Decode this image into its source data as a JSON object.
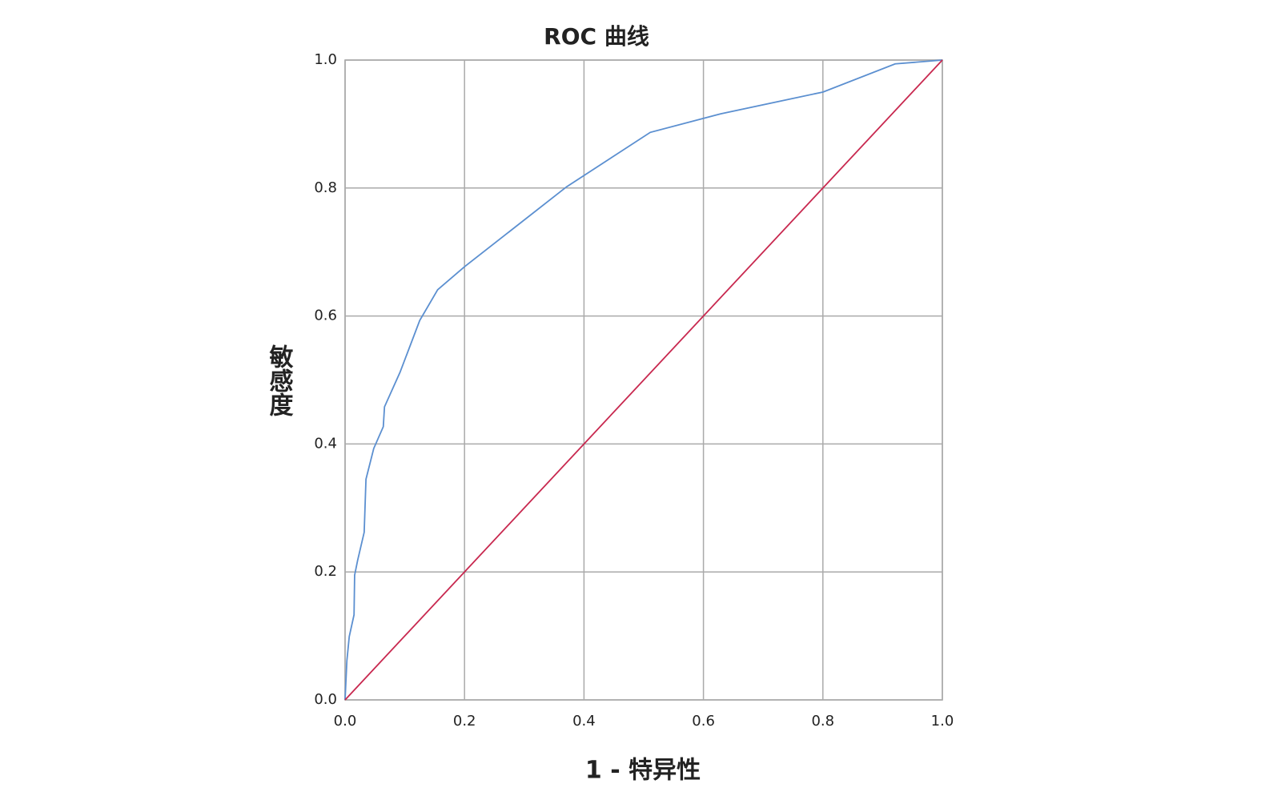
{
  "chart_data": {
    "type": "line",
    "title": "ROC 曲线",
    "x_label": "1 - 特异性",
    "y_label": "敏感度",
    "xlim": [
      0,
      1
    ],
    "ylim": [
      0,
      1
    ],
    "xticks": [
      {
        "value": 0,
        "label": "0.0"
      },
      {
        "value": 0.2,
        "label": "0.2"
      },
      {
        "value": 0.4,
        "label": "0.4"
      },
      {
        "value": 0.6,
        "label": "0.6"
      },
      {
        "value": 0.8,
        "label": "0.8"
      },
      {
        "value": 1,
        "label": "1.0"
      }
    ],
    "yticks": [
      {
        "value": 0,
        "label": "0.0"
      },
      {
        "value": 0.2,
        "label": "0.2"
      },
      {
        "value": 0.4,
        "label": "0.4"
      },
      {
        "value": 0.6,
        "label": "0.6"
      },
      {
        "value": 0.8,
        "label": "0.8"
      },
      {
        "value": 1,
        "label": "1.0"
      }
    ],
    "grid": true,
    "series": [
      {
        "color": "#5b8fd0",
        "x": [
          0,
          0.003,
          0.007,
          0.015,
          0.016,
          0.021,
          0.032,
          0.035,
          0.048,
          0.064,
          0.066,
          0.092,
          0.125,
          0.155,
          0.2,
          0.371,
          0.511,
          0.629,
          0.8,
          0.921,
          1
        ],
        "values": [
          0,
          0.061,
          0.099,
          0.133,
          0.195,
          0.218,
          0.262,
          0.345,
          0.393,
          0.427,
          0.458,
          0.512,
          0.593,
          0.641,
          0.677,
          0.802,
          0.887,
          0.916,
          0.95,
          0.994,
          1
        ]
      },
      {
        "color": "#c8284f",
        "x": [
          0,
          1
        ],
        "values": [
          0,
          1
        ]
      }
    ]
  }
}
